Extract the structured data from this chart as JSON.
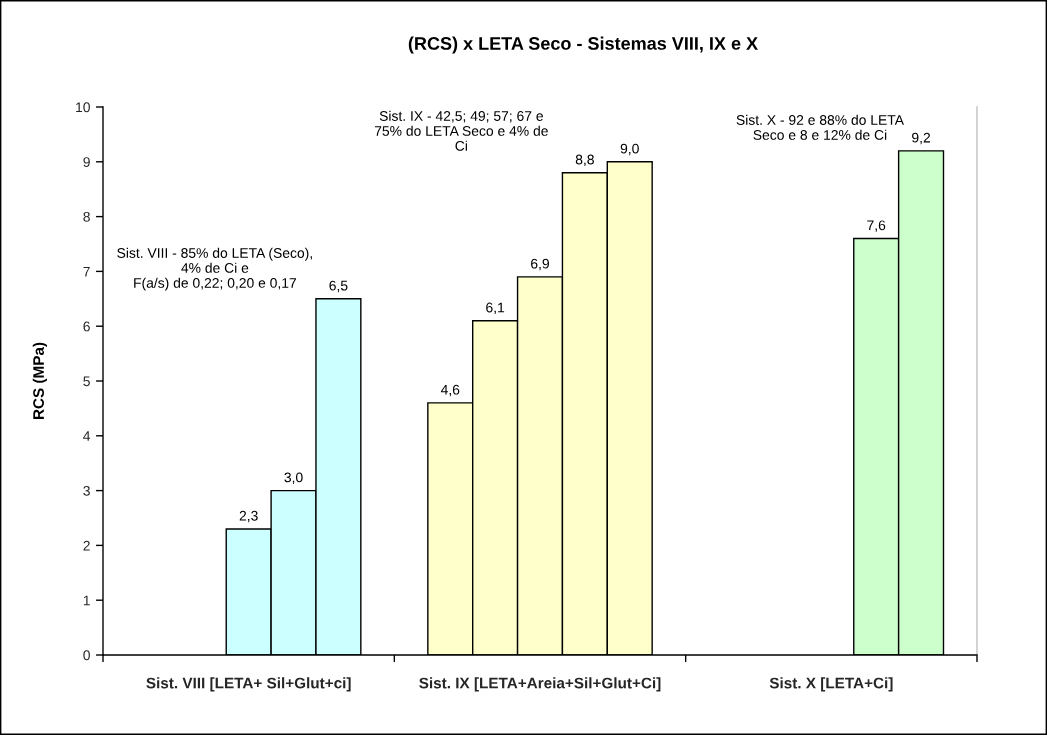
{
  "chart_data": {
    "type": "bar",
    "title": "(RCS) x LETA Seco - Sistemas VIII, IX e X",
    "ylabel": "RCS (MPa)",
    "categories": [
      "Sist. VIII [LETA+ Sil+Glut+ci]",
      "Sist. IX [LETA+Areia+Sil+Glut+Ci]",
      "Sist. X [LETA+Ci]"
    ],
    "series": [
      {
        "colors": [
          "#ccffff",
          "#ffffcc",
          "#ccffcc"
        ],
        "values": [
          null,
          4.6,
          null
        ],
        "value_labels": [
          null,
          "4,6",
          null
        ]
      },
      {
        "colors": [
          "#ccffff",
          "#ffffcc",
          "#ccffcc"
        ],
        "values": [
          null,
          6.1,
          null
        ],
        "value_labels": [
          null,
          "6,1",
          null
        ]
      },
      {
        "colors": [
          "#ccffff",
          "#ffffcc",
          "#ccffcc"
        ],
        "values": [
          2.3,
          6.9,
          null
        ],
        "value_labels": [
          "2,3",
          "6,9",
          null
        ]
      },
      {
        "colors": [
          "#ccffff",
          "#ffffcc",
          "#ccffcc"
        ],
        "values": [
          3.0,
          8.8,
          7.6
        ],
        "value_labels": [
          "3,0",
          "8,8",
          "7,6"
        ]
      },
      {
        "colors": [
          "#ccffff",
          "#ffffcc",
          "#ccffcc"
        ],
        "values": [
          6.5,
          9.0,
          9.2
        ],
        "value_labels": [
          "6,5",
          "9,0",
          "9,2"
        ]
      }
    ],
    "ylim": [
      0,
      10
    ],
    "yticks": [
      0,
      1,
      2,
      3,
      4,
      5,
      6,
      7,
      8,
      9,
      10
    ],
    "annotations": [
      "Sist. VIII - 85% do LETA (Seco),\n4% de Ci e\nF(a/s) de 0,22; 0,20 e 0,17",
      "Sist. IX - 42,5; 49; 57; 67 e\n75% do LETA Seco e 4% de\nCi",
      "Sist. X - 92 e 88% do LETA\nSeco e 8 e 12% de Ci"
    ]
  }
}
